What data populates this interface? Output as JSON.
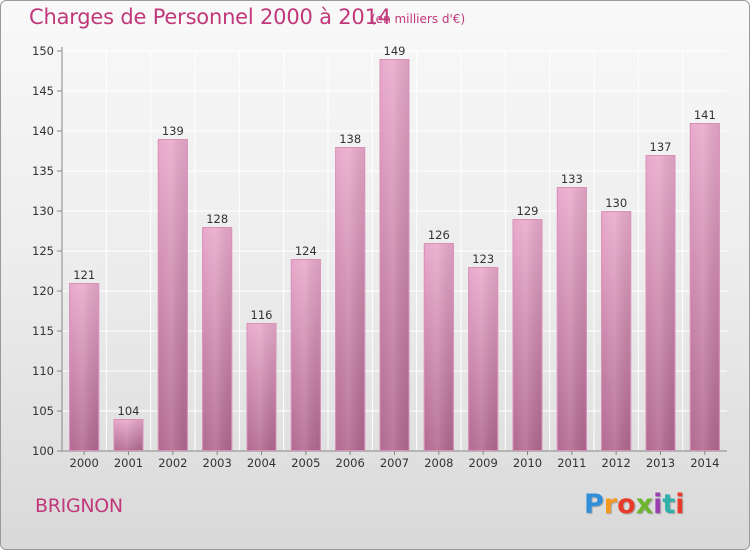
{
  "title": "Charges de Personnel 2000 à 2014",
  "unit_label": "(en milliers d'€)",
  "town": "BRIGNON",
  "logo": {
    "text": "Proxiti",
    "colors": [
      "#2f8fd8",
      "#f39a1e",
      "#e83a2a",
      "#6cb52d",
      "#9a3fb0",
      "#2fb0a8",
      "#e83a2a"
    ]
  },
  "chart_data": {
    "type": "bar",
    "title": "Charges de Personnel 2000 à 2014",
    "subtitle": "(en milliers d'€)",
    "categories": [
      "2000",
      "2001",
      "2002",
      "2003",
      "2004",
      "2005",
      "2006",
      "2007",
      "2008",
      "2009",
      "2010",
      "2011",
      "2012",
      "2013",
      "2014"
    ],
    "values": [
      121,
      104,
      139,
      128,
      116,
      124,
      138,
      149,
      126,
      123,
      129,
      133,
      130,
      137,
      141
    ],
    "data_labels": [
      "121",
      "104",
      "139",
      "128",
      "116",
      "124",
      "138",
      "149",
      "126",
      "123",
      "129",
      "133",
      "130",
      "137",
      "141"
    ],
    "ylim": [
      100,
      150
    ],
    "yticks": [
      100,
      105,
      110,
      115,
      120,
      125,
      130,
      135,
      140,
      145,
      150
    ],
    "ytick_labels": [
      "100",
      "105",
      "110",
      "115",
      "120",
      "125",
      "130",
      "135",
      "140",
      "145",
      "150"
    ],
    "grid": true,
    "bar_color": "#c76d9c",
    "xlabel": "",
    "ylabel": ""
  }
}
